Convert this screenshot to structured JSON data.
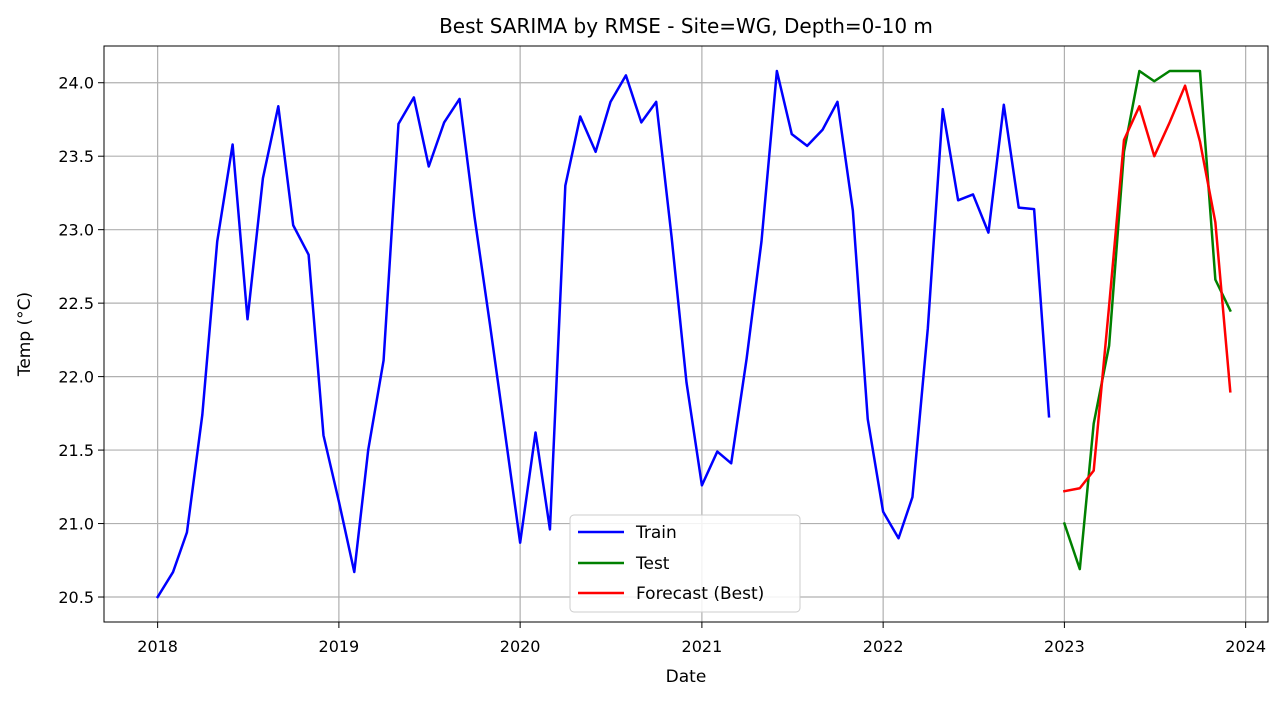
{
  "chart_data": {
    "type": "line",
    "title": "Best SARIMA by RMSE - Site=WG, Depth=0-10 m",
    "xlabel": "Date",
    "ylabel": "Temp (°C)",
    "xlim": [
      "2017-09-15",
      "2024-02-15"
    ],
    "ylim": [
      20.33,
      24.25
    ],
    "x_ticks": [
      "2018",
      "2019",
      "2020",
      "2021",
      "2022",
      "2023",
      "2024"
    ],
    "y_ticks": [
      "20.5",
      "21.0",
      "21.5",
      "22.0",
      "22.5",
      "23.0",
      "23.5",
      "24.0"
    ],
    "grid": true,
    "legend_position": "lower center",
    "series": [
      {
        "name": "Train",
        "color": "#0000ff",
        "x": [
          "2018-01",
          "2018-02",
          "2018-03",
          "2018-04",
          "2018-05",
          "2018-06",
          "2018-07",
          "2018-08",
          "2018-09",
          "2018-10",
          "2018-11",
          "2018-12",
          "2019-01",
          "2019-02",
          "2019-03",
          "2019-04",
          "2019-05",
          "2019-06",
          "2019-07",
          "2019-08",
          "2019-09",
          "2019-10",
          "2019-11",
          "2019-12",
          "2020-01",
          "2020-02",
          "2020-03",
          "2020-04",
          "2020-05",
          "2020-06",
          "2020-07",
          "2020-08",
          "2020-09",
          "2020-10",
          "2020-11",
          "2020-12",
          "2021-01",
          "2021-02",
          "2021-03",
          "2021-04",
          "2021-05",
          "2021-06",
          "2021-07",
          "2021-08",
          "2021-09",
          "2021-10",
          "2021-11",
          "2021-12",
          "2022-01",
          "2022-02",
          "2022-03",
          "2022-04",
          "2022-05",
          "2022-06",
          "2022-07",
          "2022-08",
          "2022-09",
          "2022-10",
          "2022-11",
          "2022-12"
        ],
        "y": [
          20.5,
          20.67,
          20.94,
          21.74,
          22.92,
          23.58,
          22.39,
          23.35,
          23.84,
          23.03,
          22.83,
          21.6,
          21.15,
          20.67,
          21.5,
          22.11,
          23.72,
          23.9,
          23.43,
          23.73,
          23.89,
          23.09,
          22.36,
          21.63,
          20.87,
          21.62,
          20.96,
          23.3,
          23.77,
          23.53,
          23.87,
          24.05,
          23.73,
          23.87,
          22.95,
          21.96,
          21.26,
          21.49,
          21.41,
          22.12,
          22.92,
          24.08,
          23.65,
          23.57,
          23.68,
          23.87,
          23.13,
          21.71,
          21.08,
          20.9,
          21.18,
          22.33,
          23.82,
          23.2,
          23.24,
          22.98,
          23.85,
          23.15,
          23.14,
          21.73
        ]
      },
      {
        "name": "Test",
        "color": "#008000",
        "x": [
          "2023-01",
          "2023-02",
          "2023-03",
          "2023-04",
          "2023-05",
          "2023-06",
          "2023-07",
          "2023-08",
          "2023-09",
          "2023-10",
          "2023-11",
          "2023-12"
        ],
        "y": [
          21.0,
          20.69,
          21.68,
          22.21,
          23.53,
          24.08,
          24.01,
          24.08,
          24.08,
          24.08,
          22.66,
          22.45
        ]
      },
      {
        "name": "Forecast (Best)",
        "color": "#ff0000",
        "x": [
          "2023-01",
          "2023-02",
          "2023-03",
          "2023-04",
          "2023-05",
          "2023-06",
          "2023-07",
          "2023-08",
          "2023-09",
          "2023-10",
          "2023-11",
          "2023-12"
        ],
        "y": [
          21.22,
          21.24,
          21.36,
          22.48,
          23.61,
          23.84,
          23.5,
          23.73,
          23.98,
          23.6,
          23.05,
          21.9
        ]
      }
    ]
  }
}
